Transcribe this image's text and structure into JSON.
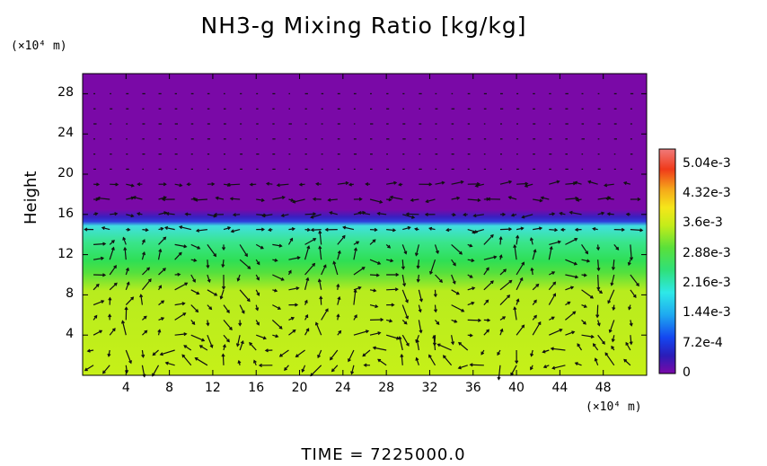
{
  "chart_data": {
    "type": "heatmap",
    "title": "NH3-g Mixing Ratio [kg/kg]",
    "ylabel": "Height",
    "y_unit": "(×10⁴ m)",
    "x_unit": "(×10⁴ m)",
    "xlim": [
      0,
      52
    ],
    "ylim": [
      0,
      30
    ],
    "x_ticks": [
      "4",
      "8",
      "12",
      "16",
      "20",
      "24",
      "28",
      "32",
      "36",
      "40",
      "44",
      "48"
    ],
    "y_ticks": [
      "4",
      "8",
      "12",
      "16",
      "20",
      "24",
      "28"
    ],
    "colorbar": {
      "min": 0,
      "max": 0.0054,
      "labels": [
        "5.04e-3",
        "4.32e-3",
        "3.6e-3",
        "2.88e-3",
        "2.16e-3",
        "1.44e-3",
        "7.2e-4",
        "0"
      ],
      "label_values": [
        0.00504,
        0.00432,
        0.0036,
        0.00288,
        0.00216,
        0.00144,
        0.00072,
        0
      ]
    },
    "fields": [
      {
        "region": "upper layer",
        "height_range": [
          17,
          30
        ],
        "value": 0
      },
      {
        "region": "transition band",
        "height_range": [
          16,
          17
        ],
        "value": 0.0008
      },
      {
        "region": "cyan-green layer",
        "height_range": [
          13,
          16
        ],
        "value": 0.0024
      },
      {
        "region": "green band",
        "height_range": [
          11,
          13
        ],
        "value": 0.003
      },
      {
        "region": "lower layer",
        "height_range": [
          0,
          11
        ],
        "value": 0.0034
      }
    ],
    "vectors": "wind vectors overlaid on the field",
    "time_label": "TIME = 7225000.0"
  }
}
